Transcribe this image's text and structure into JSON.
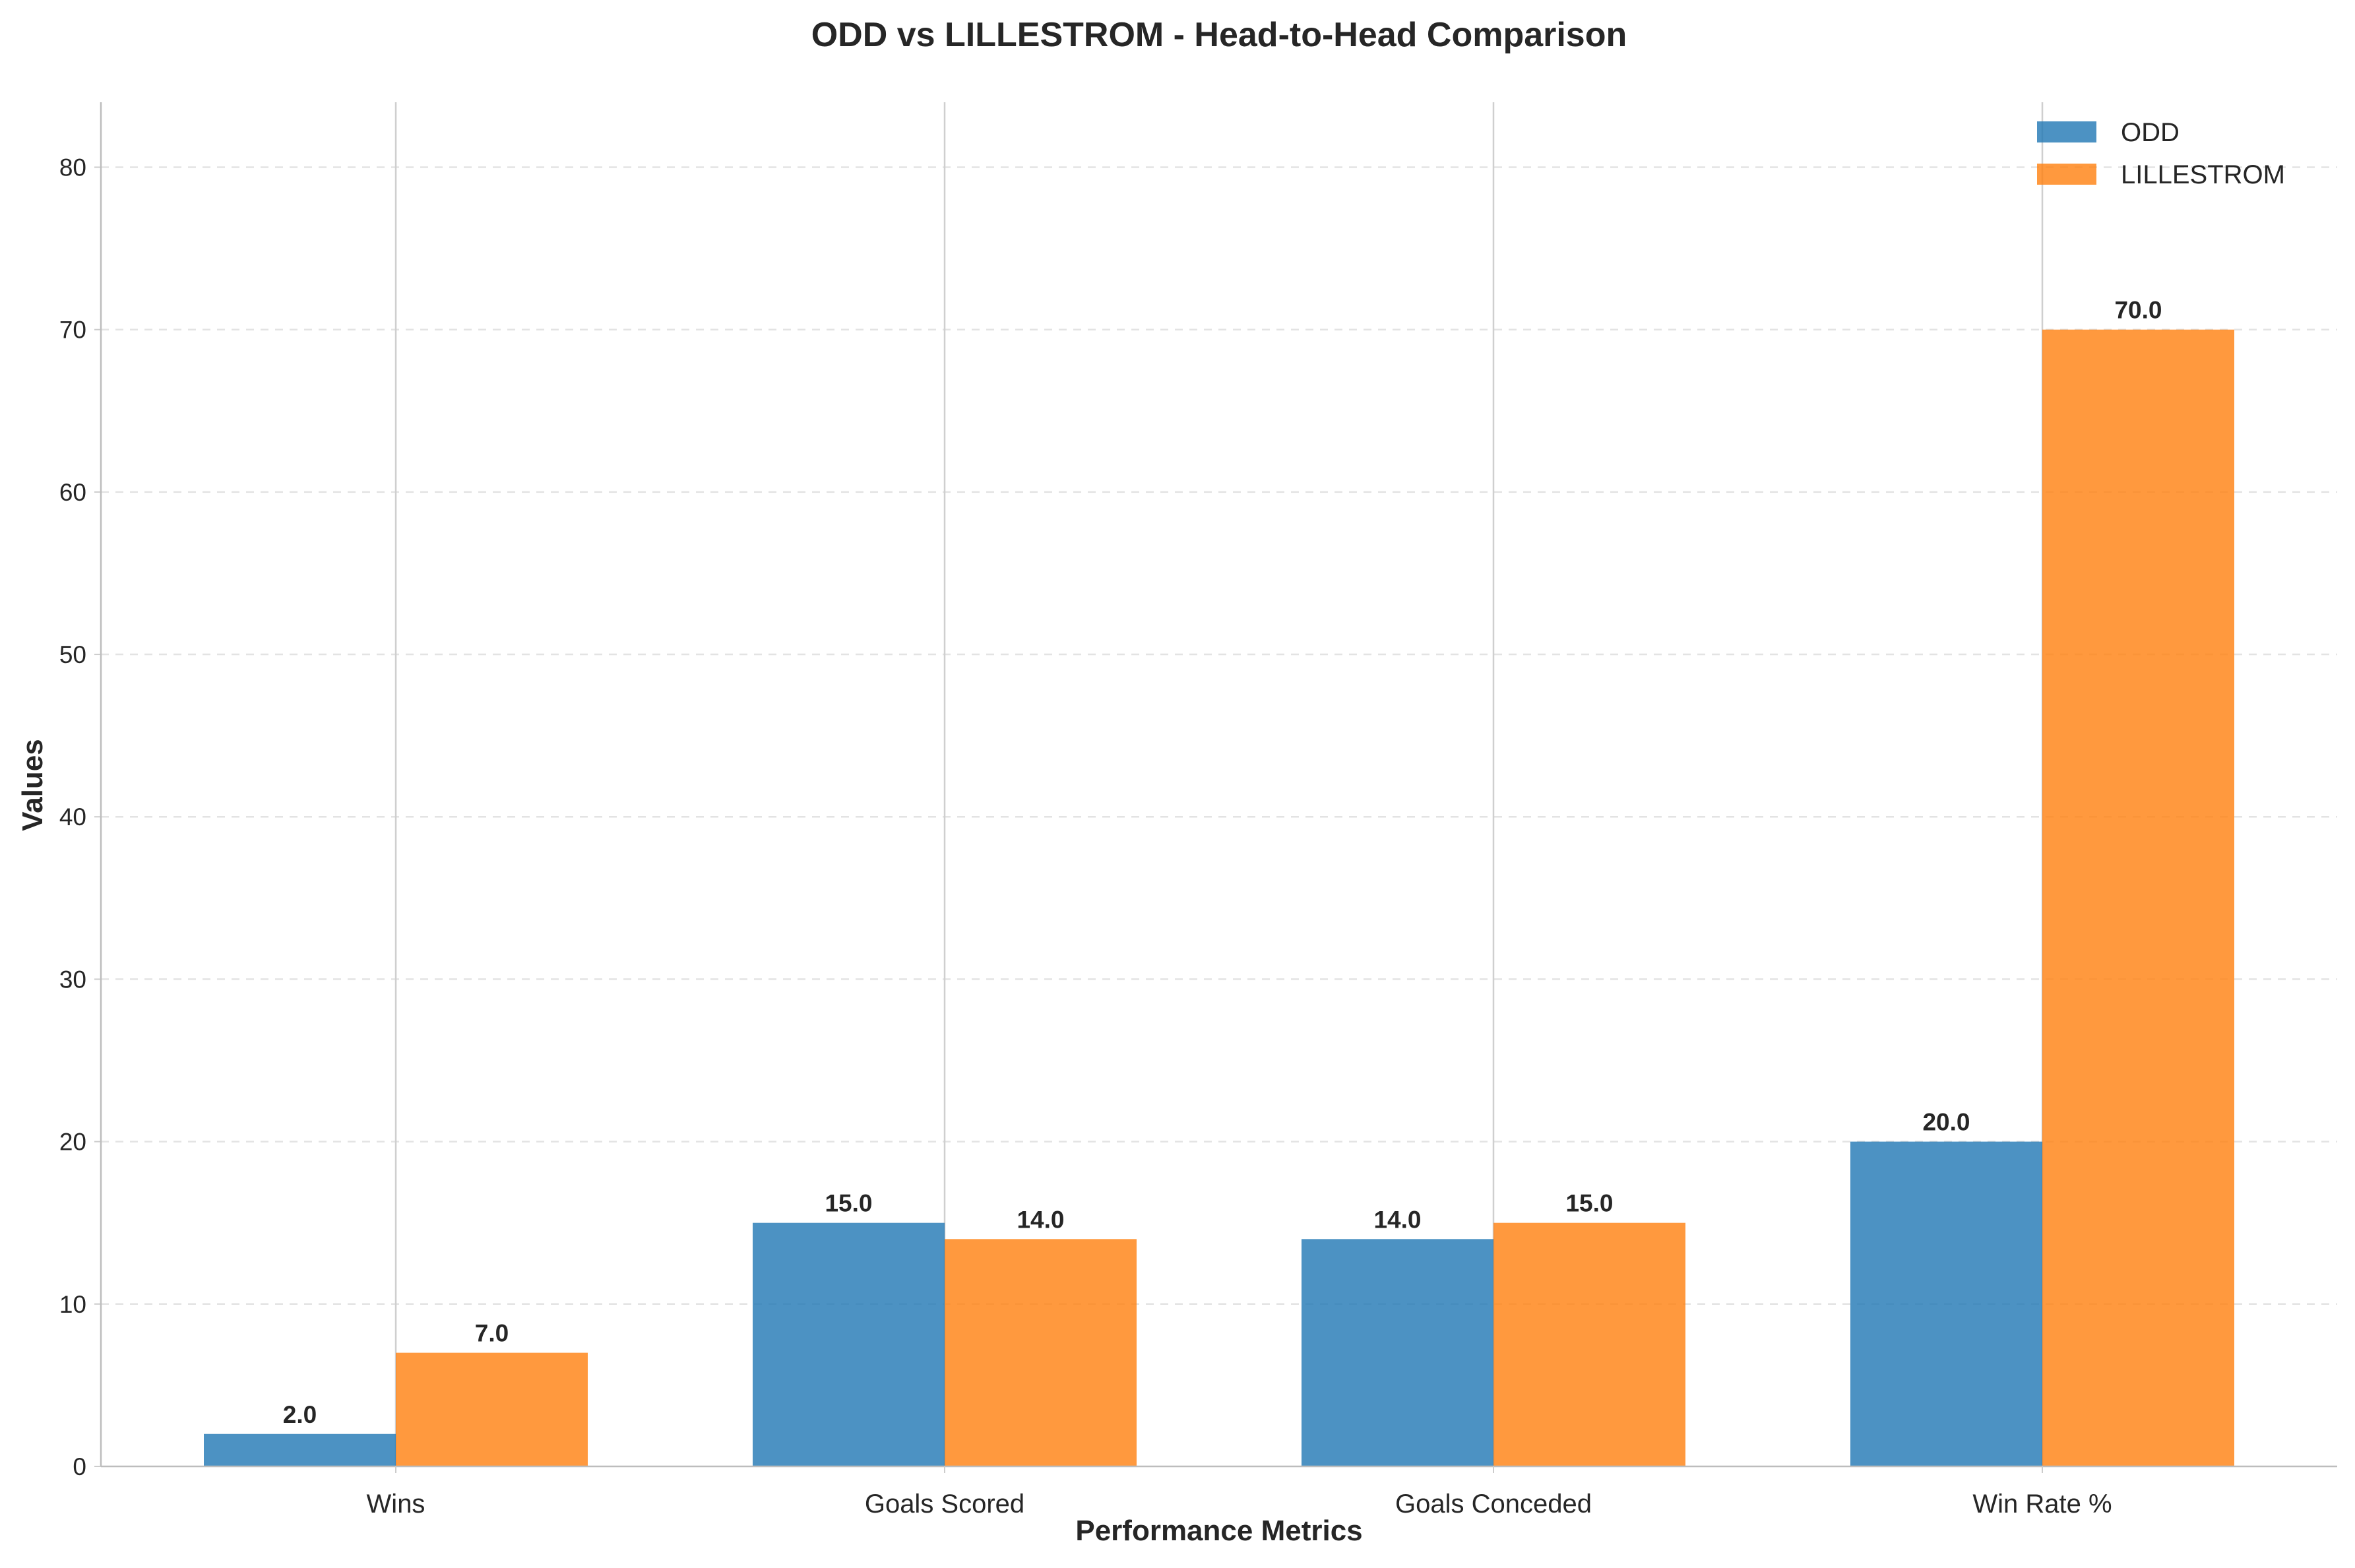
{
  "chart_data": {
    "type": "bar",
    "title": "ODD vs LILLESTROM - Head-to-Head Comparison",
    "xlabel": "Performance Metrics",
    "ylabel": "Values",
    "categories": [
      "Wins",
      "Goals Scored",
      "Goals Conceded",
      "Win Rate %"
    ],
    "series": [
      {
        "name": "ODD",
        "values": [
          2.0,
          15.0,
          14.0,
          20.0
        ],
        "color": "#1f77b4"
      },
      {
        "name": "LILLESTROM",
        "values": [
          7.0,
          14.0,
          15.0,
          70.0
        ],
        "color": "#ff7f0e"
      }
    ],
    "ylim": [
      0,
      84
    ],
    "yticks": [
      0,
      10,
      20,
      30,
      40,
      50,
      60,
      70,
      80
    ],
    "grid": "y-dashed",
    "legend": "top-right",
    "data_labels": true
  }
}
